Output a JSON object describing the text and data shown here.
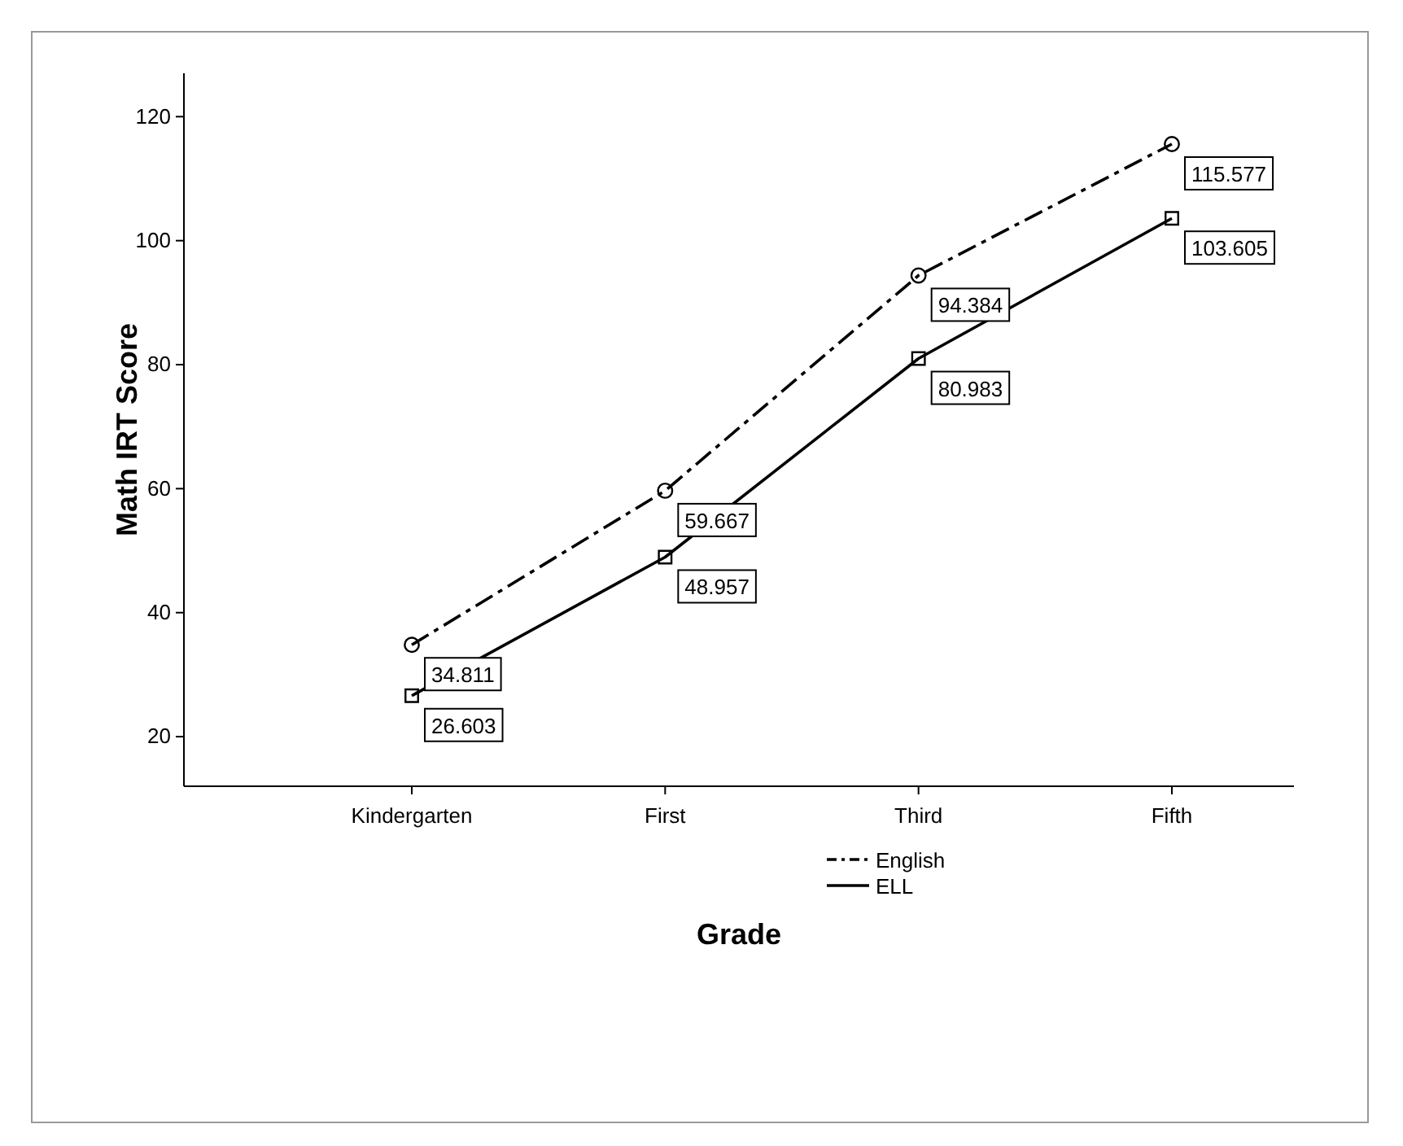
{
  "chart_data": {
    "type": "line",
    "xlabel": "Grade",
    "ylabel": "Math IRT Score",
    "categories": [
      "Kindergarten",
      "First",
      "Third",
      "Fifth"
    ],
    "ylim": [
      12,
      127
    ],
    "yticks": [
      20,
      40,
      60,
      80,
      100,
      120
    ],
    "legend": "bottom",
    "data_labels": true,
    "grid": false,
    "series": [
      {
        "name": "English",
        "color": "#000000",
        "values": [
          34.811,
          59.667,
          94.384,
          115.577
        ],
        "marker": "circle",
        "line_style": "dashdot"
      },
      {
        "name": "ELL",
        "color": "#000000",
        "values": [
          26.603,
          48.957,
          80.983,
          103.605
        ],
        "marker": "square",
        "line_style": "solid"
      }
    ]
  }
}
